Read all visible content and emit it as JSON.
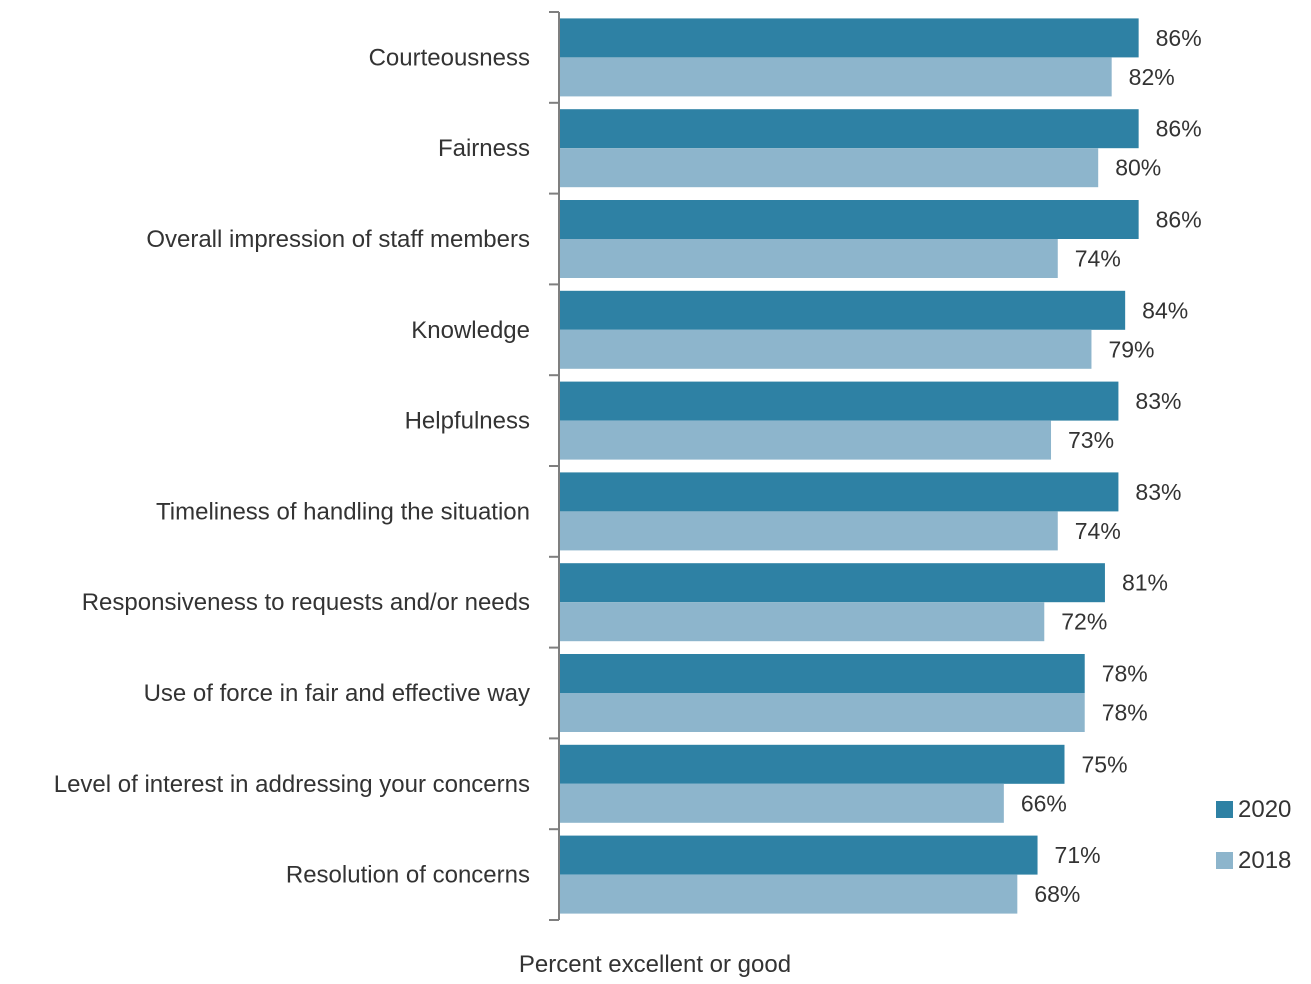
{
  "chart_data": {
    "type": "bar",
    "orientation": "horizontal",
    "categories": [
      "Courteousness",
      "Fairness",
      "Overall impression of staff members",
      "Knowledge",
      "Helpfulness",
      "Timeliness of handling the situation",
      "Responsiveness to requests and/or needs",
      "Use of force in fair and effective way",
      "Level of interest in addressing your concerns",
      "Resolution of concerns"
    ],
    "series": [
      {
        "name": "2020",
        "color": "#2e81a4",
        "values": [
          86,
          86,
          86,
          84,
          83,
          83,
          81,
          78,
          75,
          71
        ],
        "labels": [
          "86%",
          "86%",
          "86%",
          "84%",
          "83%",
          "83%",
          "81%",
          "78%",
          "75%",
          "71%"
        ]
      },
      {
        "name": "2018",
        "color": "#8db5cc",
        "values": [
          82,
          80,
          74,
          79,
          73,
          74,
          72,
          78,
          66,
          68
        ],
        "labels": [
          "82%",
          "80%",
          "74%",
          "79%",
          "73%",
          "74%",
          "72%",
          "78%",
          "66%",
          "68%"
        ]
      }
    ],
    "xlabel": "Percent excellent or good",
    "ylabel": "",
    "xlim": [
      0,
      100
    ],
    "grid": false,
    "legend_position": "bottom-right"
  }
}
